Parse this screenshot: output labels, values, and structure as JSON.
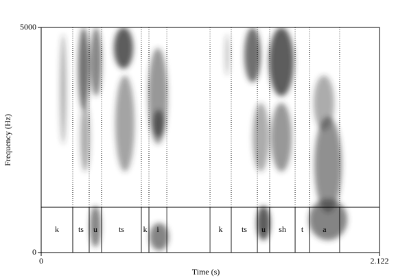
{
  "chart_data": {
    "type": "spectrogram",
    "xlabel": "Time (s)",
    "ylabel": "Frequency (Hz)",
    "xlim": [
      0,
      2.122
    ],
    "xticks": [
      0,
      2.122
    ],
    "ylim": [
      0,
      5000
    ],
    "yticks": [
      0,
      5000
    ],
    "segments": [
      {
        "label": "k",
        "start": 0,
        "end": 0.198
      },
      {
        "label": "ts",
        "start": 0.198,
        "end": 0.301
      },
      {
        "label": "u",
        "start": 0.301,
        "end": 0.379
      },
      {
        "label": "ts",
        "start": 0.379,
        "end": 0.628
      },
      {
        "label": "k",
        "start": 0.628,
        "end": 0.676
      },
      {
        "label": "i",
        "start": 0.676,
        "end": 0.788
      },
      {
        "label": "k",
        "start": 1.059,
        "end": 1.192
      },
      {
        "label": "ts",
        "start": 1.192,
        "end": 1.356
      },
      {
        "label": "u",
        "start": 1.356,
        "end": 1.433
      },
      {
        "label": "sh",
        "start": 1.433,
        "end": 1.593
      },
      {
        "label": "t",
        "start": 1.593,
        "end": 1.683
      },
      {
        "label": "a",
        "start": 1.683,
        "end": 1.872
      }
    ]
  }
}
